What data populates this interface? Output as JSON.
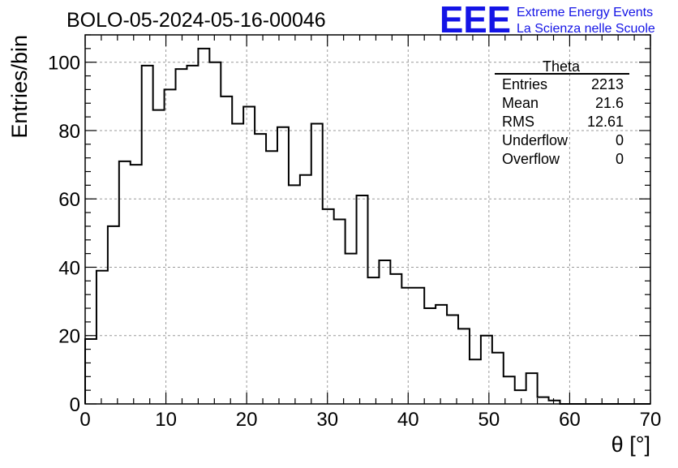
{
  "chart_data": {
    "type": "histogram",
    "title": "BOLO-05-2024-05-16-00046",
    "xlabel": "θ [°]",
    "ylabel": "Entries/bin",
    "xlim": [
      0,
      70
    ],
    "ylim": [
      0,
      108
    ],
    "bin_width": 1.4,
    "bin_start": 0,
    "x_ticks": [
      0,
      10,
      20,
      30,
      40,
      50,
      60,
      70
    ],
    "y_ticks": [
      0,
      20,
      40,
      60,
      80,
      100
    ],
    "grid": true,
    "values": [
      19,
      39,
      52,
      71,
      70,
      99,
      86,
      92,
      98,
      99,
      104,
      100,
      90,
      82,
      87,
      79,
      74,
      81,
      64,
      67,
      82,
      57,
      54,
      44,
      61,
      37,
      42,
      38,
      34,
      34,
      28,
      29,
      26,
      22,
      13,
      20,
      15,
      8,
      4,
      9,
      2,
      1,
      0,
      0,
      0,
      0,
      0,
      0,
      0,
      0
    ],
    "color": "#000000",
    "stats_box": {
      "title": "Theta",
      "rows": [
        {
          "label": "Entries",
          "value": "2213"
        },
        {
          "label": "Mean",
          "value": "21.6"
        },
        {
          "label": "RMS",
          "value": "12.61"
        },
        {
          "label": "Underflow",
          "value": "0"
        },
        {
          "label": "Overflow",
          "value": "0"
        }
      ]
    }
  },
  "logo": {
    "letters": "EEE",
    "line1": "Extreme Energy Events",
    "line2": "La Scienza nelle Scuole",
    "color": "#1414e6"
  }
}
